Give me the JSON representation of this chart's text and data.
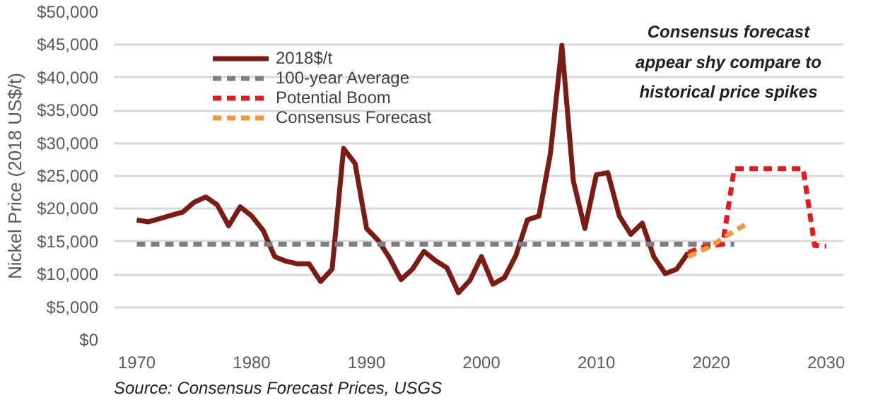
{
  "chart_data": {
    "type": "line",
    "ylabel": "Nickel Price (2018 US$/t)",
    "xlim": [
      1968,
      2031.5
    ],
    "xticks": [
      1970,
      1980,
      1990,
      2000,
      2010,
      2020,
      2030
    ],
    "ylim": [
      0,
      50000
    ],
    "yticks": [
      {
        "value": 0,
        "label": "$0"
      },
      {
        "value": 5000,
        "label": "$5,000"
      },
      {
        "value": 10000,
        "label": "$10,000"
      },
      {
        "value": 15000,
        "label": "$15,000"
      },
      {
        "value": 20000,
        "label": "$20,000"
      },
      {
        "value": 25000,
        "label": "$25,000"
      },
      {
        "value": 30000,
        "label": "$30,000"
      },
      {
        "value": 35000,
        "label": "$35,000"
      },
      {
        "value": 40000,
        "label": "$40,000"
      },
      {
        "value": 45000,
        "label": "$45,000"
      },
      {
        "value": 50000,
        "label": "$50,000"
      }
    ],
    "grid": "y",
    "legend": "top left",
    "marker": "none",
    "series": [
      {
        "name": "2018$/t",
        "color": "#7b1c14",
        "line_style": "solid",
        "x": [
          1970,
          1971,
          1972,
          1973,
          1974,
          1975,
          1976,
          1977,
          1978,
          1979,
          1980,
          1981,
          1982,
          1983,
          1984,
          1985,
          1986,
          1987,
          1988,
          1989,
          1990,
          1991,
          1992,
          1993,
          1994,
          1995,
          1996,
          1997,
          1998,
          1999,
          2000,
          2001,
          2002,
          2003,
          2004,
          2005,
          2006,
          2007,
          2008,
          2009,
          2010,
          2011,
          2012,
          2013,
          2014,
          2015,
          2016,
          2017,
          2018
        ],
        "values": [
          18300,
          18000,
          18500,
          19000,
          19500,
          21000,
          21800,
          20600,
          17400,
          20300,
          18900,
          16700,
          12700,
          12000,
          11600,
          11600,
          8900,
          10800,
          29200,
          26900,
          17000,
          15200,
          12500,
          9200,
          10800,
          13500,
          12100,
          11000,
          7200,
          9100,
          12700,
          8500,
          9500,
          12900,
          18300,
          18900,
          28400,
          44900,
          24200,
          17000,
          25200,
          25500,
          18900,
          16100,
          17800,
          12700,
          10100,
          10800,
          13300
        ]
      },
      {
        "name": "100-year Average",
        "color": "#7f7f7f",
        "line_style": "dashed",
        "x": [
          1970,
          2022
        ],
        "values": [
          14600,
          14600
        ]
      },
      {
        "name": "Potential Boom",
        "color": "#e31a1c",
        "line_style": "dashed",
        "x": [
          2018,
          2019,
          2020,
          2021,
          2022,
          2023,
          2024,
          2025,
          2026,
          2027,
          2028,
          2029,
          2030
        ],
        "values": [
          13300,
          14000,
          14400,
          14600,
          26100,
          26100,
          26100,
          26100,
          26100,
          26100,
          26100,
          14400,
          14300
        ]
      },
      {
        "name": "Consensus Forecast",
        "color": "#ed9a3c",
        "line_style": "dashed",
        "x": [
          2018,
          2019,
          2020,
          2021,
          2022,
          2023
        ],
        "values": [
          12700,
          13500,
          14300,
          15500,
          16600,
          17600
        ]
      }
    ],
    "annotations": [
      "Consensus forecast appear shy compare to historical price spikes",
      "Source: Consensus Forecast Prices, USGS"
    ]
  }
}
